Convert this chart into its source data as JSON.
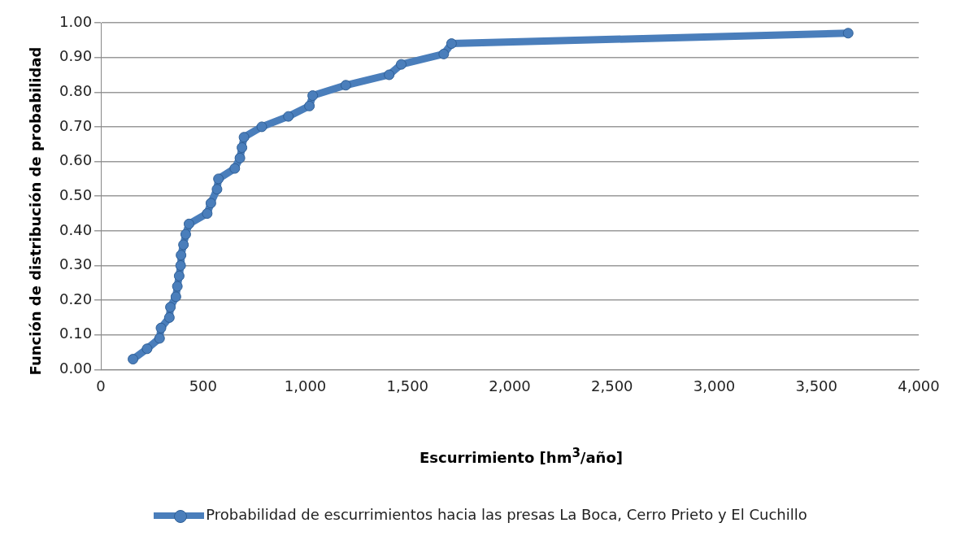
{
  "chart_data": {
    "type": "line",
    "xlabel": "Escurrimiento [hm$^{3}$/año]",
    "ylabel": "Función de distribución de probabilidad",
    "series": [
      {
        "name": "Probabilidad de escurrimientos hacia las presas La Boca, Cerro Prieto y El Cuchillo",
        "color": "#4a7ebb",
        "x": [
          157,
          226,
          287,
          294,
          335,
          340,
          367,
          374,
          383,
          390,
          392,
          404,
          415,
          431,
          520,
          538,
          568,
          575,
          655,
          680,
          690,
          700,
          787,
          917,
          1020,
          1036,
          1198,
          1410,
          1469,
          1677,
          1715,
          3655
        ],
        "values": [
          0.03,
          0.06,
          0.09,
          0.12,
          0.15,
          0.18,
          0.21,
          0.24,
          0.27,
          0.3,
          0.33,
          0.36,
          0.39,
          0.42,
          0.45,
          0.48,
          0.52,
          0.55,
          0.58,
          0.61,
          0.64,
          0.67,
          0.7,
          0.73,
          0.76,
          0.79,
          0.82,
          0.85,
          0.88,
          0.91,
          0.94,
          0.97
        ]
      }
    ],
    "xlim": [
      0,
      4000
    ],
    "xticks": [
      {
        "value": 0,
        "label": "0"
      },
      {
        "value": 500,
        "label": "500"
      },
      {
        "value": 1000,
        "label": "1,000"
      },
      {
        "value": 1500,
        "label": "1,500"
      },
      {
        "value": 2000,
        "label": "2,000"
      },
      {
        "value": 2500,
        "label": "2,500"
      },
      {
        "value": 3000,
        "label": "3,000"
      },
      {
        "value": 3500,
        "label": "3,500"
      },
      {
        "value": 4000,
        "label": "4,000"
      }
    ],
    "ylim": [
      0,
      1
    ],
    "yticks": [
      {
        "value": 0,
        "label": "0.00"
      },
      {
        "value": 0.1,
        "label": "0.10"
      },
      {
        "value": 0.2,
        "label": "0.20"
      },
      {
        "value": 0.3,
        "label": "0.30"
      },
      {
        "value": 0.4,
        "label": "0.40"
      },
      {
        "value": 0.5,
        "label": "0.50"
      },
      {
        "value": 0.6,
        "label": "0.60"
      },
      {
        "value": 0.7,
        "label": "0.70"
      },
      {
        "value": 0.8,
        "label": "0.80"
      },
      {
        "value": 0.9,
        "label": "0.90"
      },
      {
        "value": 1,
        "label": "1.00"
      }
    ],
    "grid": "y",
    "legend": "bottom",
    "marker": "circle",
    "line_style": "solid"
  }
}
